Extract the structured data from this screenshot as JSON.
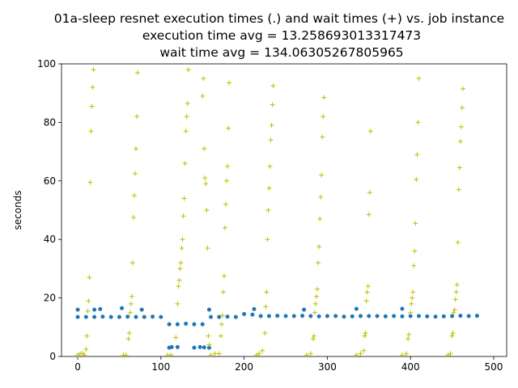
{
  "chart_data": {
    "type": "scatter",
    "title": "01a-sleep resnet execution times (.) and wait times (+) vs. job instance",
    "subtitle": [
      "execution time avg = 13.258693013317473",
      "wait time avg = 134.06305267805965"
    ],
    "y_label": "seconds",
    "xlim": [
      -19.5,
      515.6
    ],
    "ylim": [
      0,
      100
    ],
    "xticks": [
      0,
      100,
      200,
      300,
      400,
      500
    ],
    "yticks": [
      0,
      20,
      40,
      60,
      80,
      100
    ],
    "series": [
      {
        "marker": "o",
        "color": "#1f77b4",
        "x": [
          0,
          10,
          20,
          30,
          40,
          50,
          60,
          70,
          80,
          90,
          100,
          110,
          120,
          130,
          140,
          150,
          160,
          170,
          180,
          190,
          200,
          210,
          220,
          230,
          240,
          250,
          260,
          270,
          280,
          290,
          300,
          310,
          320,
          330,
          340,
          350,
          360,
          370,
          380,
          390,
          400,
          410,
          420,
          430,
          440,
          450,
          460,
          470,
          480,
          0,
          20,
          27,
          53,
          77,
          158,
          212,
          272,
          335,
          390,
          110,
          113,
          120,
          140,
          147,
          152,
          158
        ],
        "values": [
          13.5,
          13.5,
          13.5,
          13.6,
          13.5,
          13.5,
          13.6,
          13.5,
          13.5,
          13.6,
          13.5,
          11,
          11,
          11.2,
          11,
          11,
          13.5,
          13.5,
          13.6,
          13.5,
          14.5,
          14.3,
          13.8,
          13.8,
          13.9,
          13.8,
          13.8,
          13.9,
          13.8,
          13.7,
          13.8,
          13.8,
          13.6,
          13.7,
          13.8,
          13.8,
          13.8,
          13.7,
          13.8,
          13.7,
          13.8,
          13.8,
          13.7,
          13.6,
          13.7,
          13.8,
          13.9,
          13.8,
          13.9,
          16,
          16,
          16.2,
          16.5,
          16,
          16,
          16.2,
          16,
          16.3,
          16.3,
          3,
          3.2,
          3.2,
          3,
          3.2,
          3.1,
          3
        ]
      },
      {
        "marker": "+",
        "color": "#bfbf00",
        "x": [
          0,
          3,
          6,
          8,
          10,
          11,
          12,
          13,
          14,
          15,
          16,
          17,
          18,
          19,
          55,
          58,
          61,
          62,
          63,
          64,
          65,
          66,
          67,
          68,
          69,
          70,
          71,
          72,
          108,
          112,
          118,
          120,
          121,
          122,
          123,
          124,
          125,
          126,
          127,
          128,
          129,
          130,
          131,
          132,
          133,
          150,
          151,
          152,
          153,
          154,
          155,
          156,
          157,
          158,
          160,
          165,
          170,
          172,
          173,
          174,
          175,
          176,
          177,
          178,
          179,
          180,
          181,
          182,
          215,
          218,
          222,
          225,
          226,
          227,
          228,
          229,
          230,
          231,
          232,
          233,
          234,
          235,
          275,
          280,
          283,
          284,
          285,
          286,
          287,
          288,
          289,
          290,
          291,
          292,
          293,
          294,
          295,
          296,
          335,
          340,
          344,
          345,
          346,
          347,
          348,
          349,
          350,
          351,
          352,
          390,
          395,
          397,
          398,
          400,
          401,
          402,
          403,
          404,
          405,
          406,
          407,
          408,
          409,
          410,
          445,
          448,
          450,
          451,
          452,
          453,
          454,
          455,
          456,
          457,
          458,
          459,
          460,
          461,
          462,
          463
        ],
        "values": [
          0.5,
          1,
          1,
          0.5,
          2.5,
          7,
          15.5,
          19,
          27,
          59.5,
          77,
          85.5,
          92,
          98,
          0.5,
          0.5,
          6,
          8,
          15,
          18,
          20.5,
          32,
          47.5,
          55,
          62.5,
          71,
          82,
          97,
          0.5,
          0.5,
          6.5,
          18,
          24,
          26,
          30,
          32,
          37,
          40,
          48,
          54,
          66,
          77,
          82,
          86.5,
          98,
          89,
          95,
          71,
          61,
          59,
          50,
          37,
          7,
          4,
          0.5,
          1,
          1,
          7,
          11,
          14,
          22,
          27.5,
          44,
          52,
          60,
          65,
          78,
          93.5,
          0.5,
          1,
          2,
          8,
          17,
          22,
          40,
          50,
          57.5,
          65,
          74,
          79,
          86,
          92.5,
          0.5,
          1,
          6,
          7,
          15,
          18,
          20.5,
          23,
          32,
          37.5,
          47,
          54.5,
          62,
          75,
          82,
          88.5,
          0.5,
          1,
          2,
          7,
          8,
          19,
          22,
          24,
          48.5,
          56,
          77,
          0.5,
          1,
          6,
          7.5,
          15,
          18,
          20,
          22,
          31,
          36,
          45.5,
          60.5,
          69,
          80,
          95,
          0.5,
          1,
          7,
          8,
          15,
          16,
          19.5,
          22,
          24.5,
          39,
          57,
          64.5,
          73.5,
          78.5,
          85,
          91.5
        ]
      }
    ]
  }
}
